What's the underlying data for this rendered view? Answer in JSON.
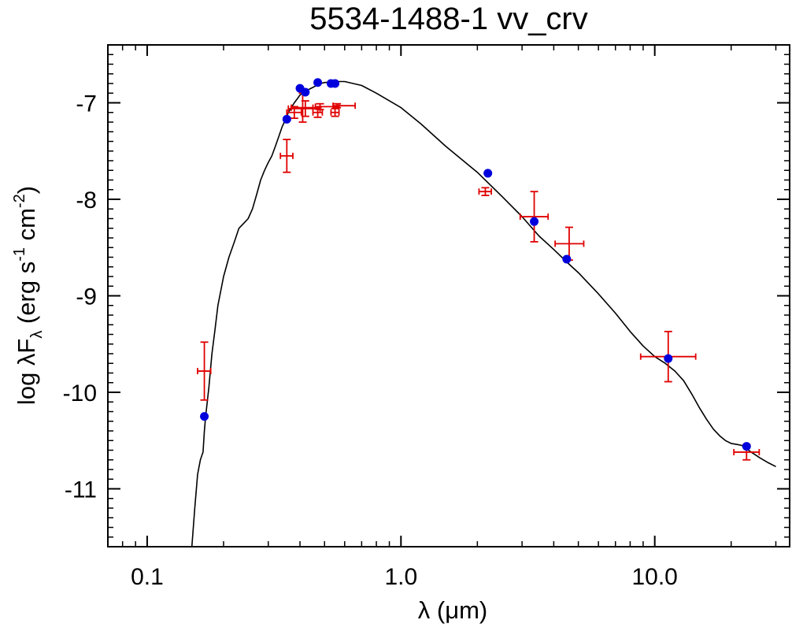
{
  "chart_data": {
    "type": "scatter",
    "title": "5534-1488-1   vv_crv",
    "xlabel": "λ (μm)",
    "ylabel_parts": {
      "prefix": "log λF",
      "subscript": "λ",
      "open": " (erg s",
      "sup1": "-1",
      "mid": " cm",
      "sup2": "-2",
      "close": ")"
    },
    "xscale": "log",
    "xlim": [
      0.07,
      34
    ],
    "ylim": [
      -11.6,
      -6.4
    ],
    "x_ticks": [
      {
        "value": 0.1,
        "label": "0.1"
      },
      {
        "value": 1.0,
        "label": "1.0"
      },
      {
        "value": 10.0,
        "label": "10.0"
      }
    ],
    "y_ticks": [
      {
        "value": -7,
        "label": "-7"
      },
      {
        "value": -8,
        "label": "-8"
      },
      {
        "value": -9,
        "label": "-9"
      },
      {
        "value": -10,
        "label": "-10"
      },
      {
        "value": -11,
        "label": "-11"
      }
    ],
    "colors": {
      "model": "#000000",
      "model_points": "#0000dd",
      "observed": "#e00000",
      "axes": "#000000"
    },
    "series": [
      {
        "name": "model_sed",
        "kind": "line",
        "x": [
          0.15,
          0.154,
          0.158,
          0.162,
          0.166,
          0.168,
          0.17,
          0.175,
          0.18,
          0.185,
          0.19,
          0.195,
          0.2,
          0.21,
          0.22,
          0.23,
          0.24,
          0.25,
          0.26,
          0.27,
          0.28,
          0.29,
          0.3,
          0.31,
          0.32,
          0.33,
          0.34,
          0.35,
          0.36,
          0.37,
          0.38,
          0.39,
          0.4,
          0.42,
          0.45,
          0.48,
          0.5,
          0.55,
          0.6,
          0.7,
          0.8,
          1.0,
          1.2,
          1.5,
          2.0,
          2.5,
          3.0,
          3.5,
          4.0,
          4.5,
          5.0,
          6.0,
          7.0,
          8.0,
          9.0,
          10.0,
          11.0,
          12.0,
          13.0,
          14.0,
          15.0,
          16.0,
          17.0,
          18.0,
          19.0,
          20.0,
          21.0,
          22.0,
          24.0,
          26.0,
          28.0,
          30.0
        ],
        "y": [
          -11.65,
          -11.2,
          -10.85,
          -10.7,
          -10.62,
          -10.4,
          -10.25,
          -9.95,
          -9.6,
          -9.35,
          -9.1,
          -8.95,
          -8.8,
          -8.6,
          -8.45,
          -8.3,
          -8.25,
          -8.2,
          -8.1,
          -7.95,
          -7.8,
          -7.7,
          -7.62,
          -7.55,
          -7.45,
          -7.35,
          -7.25,
          -7.18,
          -7.1,
          -7.05,
          -7.0,
          -6.96,
          -6.92,
          -6.88,
          -6.84,
          -6.8,
          -6.79,
          -6.78,
          -6.78,
          -6.82,
          -6.9,
          -7.05,
          -7.22,
          -7.45,
          -7.72,
          -7.97,
          -8.18,
          -8.38,
          -8.52,
          -8.65,
          -8.76,
          -8.98,
          -9.18,
          -9.37,
          -9.52,
          -9.63,
          -9.7,
          -9.78,
          -9.88,
          -10.02,
          -10.16,
          -10.28,
          -10.38,
          -10.45,
          -10.5,
          -10.53,
          -10.54,
          -10.55,
          -10.62,
          -10.68,
          -10.73,
          -10.77
        ]
      },
      {
        "name": "model_photometry",
        "kind": "points",
        "x": [
          0.168,
          0.355,
          0.4,
          0.42,
          0.47,
          0.53,
          0.55,
          2.2,
          3.35,
          4.5,
          11.3,
          23.0
        ],
        "y": [
          -10.25,
          -7.17,
          -6.85,
          -6.89,
          -6.79,
          -6.8,
          -6.8,
          -7.73,
          -8.23,
          -8.62,
          -9.65,
          -10.56
        ]
      },
      {
        "name": "observed_fluxes",
        "kind": "errorbars",
        "x": [
          0.168,
          0.355,
          0.38,
          0.41,
          0.42,
          0.47,
          0.48,
          0.55,
          0.56,
          2.15,
          3.35,
          4.6,
          11.3,
          23.0
        ],
        "xerr_lo": [
          0.01,
          0.02,
          0.025,
          0.04,
          0.06,
          0.02,
          0.02,
          0.02,
          0.02,
          0.12,
          0.4,
          0.55,
          2.5,
          2.5
        ],
        "xerr_hi": [
          0.01,
          0.02,
          0.025,
          0.04,
          0.06,
          0.02,
          0.09,
          0.02,
          0.1,
          0.12,
          0.45,
          0.65,
          3.2,
          2.8
        ],
        "y": [
          -9.78,
          -7.55,
          -7.1,
          -7.05,
          -7.06,
          -7.1,
          -7.04,
          -7.1,
          -7.03,
          -7.92,
          -8.18,
          -8.46,
          -9.63,
          -10.62
        ],
        "yerr": [
          0.3,
          0.17,
          0.06,
          0.15,
          0.08,
          0.05,
          0.03,
          0.04,
          0.02,
          0.04,
          0.26,
          0.17,
          0.26,
          0.08
        ]
      }
    ]
  }
}
